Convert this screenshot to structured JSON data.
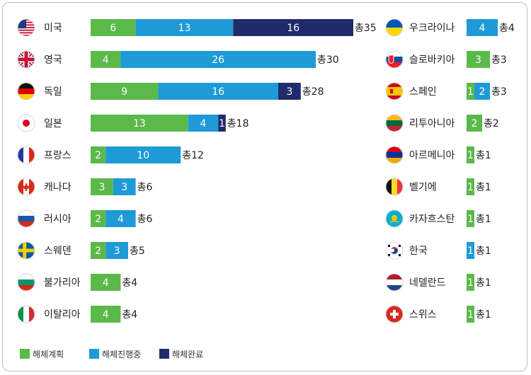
{
  "chart_data": {
    "type": "bar",
    "orientation": "horizontal",
    "stacked": true,
    "series": [
      {
        "name": "해체계획",
        "color": "#5bb94a"
      },
      {
        "name": "해체진행중",
        "color": "#1e9ad6"
      },
      {
        "name": "해체완료",
        "color": "#1f2b6b"
      }
    ],
    "columns": [
      {
        "rows": [
          {
            "country": "미국",
            "flag": "flag-usa",
            "values": [
              6,
              13,
              16
            ],
            "total_label": "총35"
          },
          {
            "country": "영국",
            "flag": "flag-uk",
            "values": [
              4,
              26,
              0
            ],
            "total_label": "총30"
          },
          {
            "country": "독일",
            "flag": "flag-germany",
            "values": [
              9,
              16,
              3
            ],
            "total_label": "총28"
          },
          {
            "country": "일본",
            "flag": "flag-japan",
            "values": [
              13,
              4,
              1
            ],
            "total_label": "총18"
          },
          {
            "country": "프랑스",
            "flag": "flag-france",
            "values": [
              2,
              10,
              0
            ],
            "total_label": "총12"
          },
          {
            "country": "캐나다",
            "flag": "flag-canada",
            "values": [
              3,
              3,
              0
            ],
            "total_label": "총6"
          },
          {
            "country": "러시아",
            "flag": "flag-russia",
            "values": [
              2,
              4,
              0
            ],
            "total_label": "총6"
          },
          {
            "country": "스웨덴",
            "flag": "flag-sweden",
            "values": [
              2,
              3,
              0
            ],
            "total_label": "총5"
          },
          {
            "country": "불가리아",
            "flag": "flag-bulgaria",
            "values": [
              4,
              0,
              0
            ],
            "total_label": "총4"
          },
          {
            "country": "이탈리아",
            "flag": "flag-italy",
            "values": [
              4,
              0,
              0
            ],
            "total_label": "총4"
          }
        ]
      },
      {
        "rows": [
          {
            "country": "우크라이나",
            "flag": "flag-ukraine",
            "values": [
              0,
              4,
              0
            ],
            "total_label": "총4"
          },
          {
            "country": "슬로바키아",
            "flag": "flag-slovakia",
            "values": [
              3,
              0,
              0
            ],
            "total_label": "총3"
          },
          {
            "country": "스페인",
            "flag": "flag-spain",
            "values": [
              1,
              2,
              0
            ],
            "total_label": "총3"
          },
          {
            "country": "리투아니아",
            "flag": "flag-lithuania",
            "values": [
              2,
              0,
              0
            ],
            "total_label": "총2"
          },
          {
            "country": "아르메니아",
            "flag": "flag-armenia",
            "values": [
              1,
              0,
              0
            ],
            "total_label": "총1"
          },
          {
            "country": "벨기에",
            "flag": "flag-belgium",
            "values": [
              1,
              0,
              0
            ],
            "total_label": "총1"
          },
          {
            "country": "카자흐스탄",
            "flag": "flag-kazakhstan",
            "values": [
              1,
              0,
              0
            ],
            "total_label": "총1"
          },
          {
            "country": "한국",
            "flag": "flag-korea",
            "values": [
              0,
              1,
              0
            ],
            "total_label": "총1"
          },
          {
            "country": "네델란드",
            "flag": "flag-netherlands",
            "values": [
              1,
              0,
              0
            ],
            "total_label": "총1"
          },
          {
            "country": "스위스",
            "flag": "flag-switzerland",
            "values": [
              1,
              0,
              0
            ],
            "total_label": "총1"
          }
        ]
      }
    ],
    "legend_position": "bottom-left",
    "grid": false
  }
}
